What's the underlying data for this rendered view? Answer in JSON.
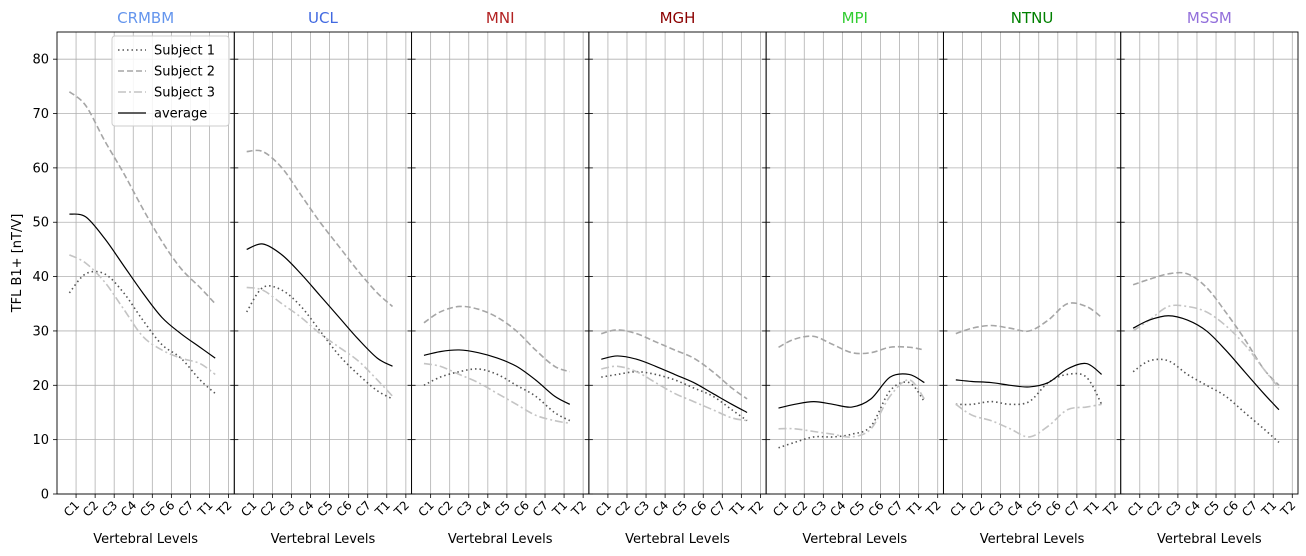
{
  "figure": {
    "ylabel": "TFL B1+ [nT/V]",
    "xlabel": "Vertebral Levels"
  },
  "chart_data": {
    "type": "line",
    "ylim": [
      0,
      85
    ],
    "yticks": [
      0,
      10,
      20,
      30,
      40,
      50,
      60,
      70,
      80
    ],
    "categories": [
      "C1",
      "C2",
      "C3",
      "C4",
      "C5",
      "C6",
      "C7",
      "T1",
      "T2"
    ],
    "xlabel": "Vertebral Levels",
    "ylabel": "TFL B1+ [nT/V]",
    "grid": true,
    "legend": {
      "placement": "top-right of first panel",
      "entries": [
        {
          "name": "Subject 1",
          "style": "dotted",
          "color": "#555555"
        },
        {
          "name": "Subject 2",
          "style": "dashed",
          "color": "#a6a6a6"
        },
        {
          "name": "Subject 3",
          "style": "dashdot",
          "color": "#c4c4c4"
        },
        {
          "name": "average",
          "style": "solid",
          "color": "#000000"
        }
      ]
    },
    "panels": [
      {
        "title": "CRMBM",
        "title_color": "#6495ed",
        "series": [
          {
            "name": "Subject 1",
            "x": [
              0.65,
              1.5,
              2.5,
              3.5,
              4.5,
              5.5,
              6.5,
              7.5,
              8.3
            ],
            "values": [
              37,
              40.5,
              40.5,
              37,
              32,
              27.5,
              25,
              21,
              18.5
            ]
          },
          {
            "name": "Subject 2",
            "x": [
              0.65,
              1.5,
              2.5,
              3.5,
              4.5,
              5.5,
              6.5,
              7.5,
              8.3
            ],
            "values": [
              74,
              71.5,
              65,
              59,
              52.5,
              46.5,
              41.5,
              38,
              35
            ]
          },
          {
            "name": "Subject 3",
            "x": [
              0.65,
              1.5,
              2.5,
              3.5,
              4.5,
              5.5,
              6.5,
              7.5,
              8.3
            ],
            "values": [
              44,
              42.5,
              39,
              34,
              29,
              26.5,
              25,
              24,
              22
            ]
          },
          {
            "name": "average",
            "x": [
              0.65,
              1.5,
              2.5,
              3.5,
              4.5,
              5.5,
              6.5,
              7.5,
              8.3
            ],
            "values": [
              51.5,
              51,
              47,
              42,
              37,
              32.5,
              29.5,
              27,
              25
            ]
          }
        ]
      },
      {
        "title": "UCL",
        "title_color": "#4169e1",
        "series": [
          {
            "name": "Subject 1",
            "x": [
              0.65,
              1.5,
              2.5,
              3.5,
              4.5,
              5.5,
              6.5,
              7.5,
              8.3
            ],
            "values": [
              33.5,
              38,
              37.5,
              34.5,
              30,
              25.5,
              22,
              19,
              17.5
            ]
          },
          {
            "name": "Subject 2",
            "x": [
              0.65,
              1.5,
              2.5,
              3.5,
              4.5,
              5.5,
              6.5,
              7.5,
              8.3
            ],
            "values": [
              63,
              63,
              60,
              55,
              50,
              45.5,
              41,
              37,
              34.5
            ]
          },
          {
            "name": "Subject 3",
            "x": [
              0.65,
              1.5,
              2.5,
              3.5,
              4.5,
              5.5,
              6.5,
              7.5,
              8.3
            ],
            "values": [
              38,
              37.5,
              35,
              32.5,
              29.5,
              27,
              24.5,
              21,
              18
            ]
          },
          {
            "name": "average",
            "x": [
              0.65,
              1.5,
              2.5,
              3.5,
              4.5,
              5.5,
              6.5,
              7.5,
              8.3
            ],
            "values": [
              45,
              46,
              44,
              40.5,
              36.5,
              32.5,
              28.5,
              25,
              23.5
            ]
          }
        ]
      },
      {
        "title": "MNI",
        "title_color": "#b22222",
        "series": [
          {
            "name": "Subject 1",
            "x": [
              0.65,
              1.5,
              2.5,
              3.5,
              4.5,
              5.5,
              6.5,
              7.5,
              8.3
            ],
            "values": [
              20,
              21.5,
              22.5,
              23,
              22,
              20,
              18,
              15,
              13.5
            ]
          },
          {
            "name": "Subject 2",
            "x": [
              0.65,
              1.5,
              2.5,
              3.5,
              4.5,
              5.5,
              6.5,
              7.5,
              8.3
            ],
            "values": [
              31.5,
              33.5,
              34.5,
              34,
              32.5,
              30,
              26.5,
              23.5,
              22.5
            ]
          },
          {
            "name": "Subject 3",
            "x": [
              0.65,
              1.5,
              2.5,
              3.5,
              4.5,
              5.5,
              6.5,
              7.5,
              8.3
            ],
            "values": [
              24,
              23.5,
              22,
              20.5,
              18.5,
              16.5,
              14.5,
              13.5,
              13
            ]
          },
          {
            "name": "average",
            "x": [
              0.65,
              1.5,
              2.5,
              3.5,
              4.5,
              5.5,
              6.5,
              7.5,
              8.3
            ],
            "values": [
              25.5,
              26.2,
              26.5,
              26,
              25,
              23.5,
              21,
              18,
              16.5
            ]
          }
        ]
      },
      {
        "title": "MGH",
        "title_color": "#8b0000",
        "series": [
          {
            "name": "Subject 1",
            "x": [
              0.65,
              1.5,
              2.5,
              3.5,
              4.5,
              5.5,
              6.5,
              7.5,
              8.3
            ],
            "values": [
              21.5,
              22,
              22.5,
              22,
              21,
              19.5,
              18,
              15.5,
              13.5
            ]
          },
          {
            "name": "Subject 2",
            "x": [
              0.65,
              1.5,
              2.5,
              3.5,
              4.5,
              5.5,
              6.5,
              7.5,
              8.3
            ],
            "values": [
              29.5,
              30.2,
              29.5,
              28,
              26.5,
              25,
              22.5,
              19.5,
              17.5
            ]
          },
          {
            "name": "Subject 3",
            "x": [
              0.65,
              1.5,
              2.5,
              3.5,
              4.5,
              5.5,
              6.5,
              7.5,
              8.3
            ],
            "values": [
              23,
              23.5,
              22.5,
              20.5,
              18.5,
              17,
              15.5,
              14,
              13.5
            ]
          },
          {
            "name": "average",
            "x": [
              0.65,
              1.5,
              2.5,
              3.5,
              4.5,
              5.5,
              6.5,
              7.5,
              8.3
            ],
            "values": [
              24.8,
              25.4,
              24.8,
              23.5,
              22,
              20.5,
              18.5,
              16.5,
              15
            ]
          }
        ]
      },
      {
        "title": "MPI",
        "title_color": "#32cd32",
        "series": [
          {
            "name": "Subject 1",
            "x": [
              0.65,
              1.5,
              2.5,
              3.5,
              4.5,
              5.5,
              6.5,
              7.5,
              8.3
            ],
            "values": [
              8.5,
              9.5,
              10.5,
              10.5,
              11,
              12.5,
              19,
              20.5,
              17
            ]
          },
          {
            "name": "Subject 2",
            "x": [
              0.65,
              1.5,
              2.5,
              3.5,
              4.5,
              5.5,
              6.5,
              7.5,
              8.3
            ],
            "values": [
              27,
              28.5,
              29,
              27.5,
              26,
              26,
              27,
              27,
              26.5
            ]
          },
          {
            "name": "Subject 3",
            "x": [
              0.65,
              1.5,
              2.5,
              3.5,
              4.5,
              5.5,
              6.5,
              7.5,
              8.3
            ],
            "values": [
              12,
              12,
              11.5,
              11,
              10.5,
              12,
              18,
              21,
              17.5
            ]
          },
          {
            "name": "average",
            "x": [
              0.65,
              1.5,
              2.5,
              3.5,
              4.5,
              5.5,
              6.5,
              7.5,
              8.3
            ],
            "values": [
              15.8,
              16.5,
              17,
              16.5,
              16,
              17.5,
              21.5,
              22,
              20.5
            ]
          }
        ]
      },
      {
        "title": "NTNU",
        "title_color": "#008000",
        "series": [
          {
            "name": "Subject 1",
            "x": [
              0.65,
              1.5,
              2.5,
              3.5,
              4.5,
              5.5,
              6.5,
              7.5,
              8.3
            ],
            "values": [
              16.5,
              16.5,
              17,
              16.5,
              17,
              20.5,
              22,
              21.5,
              16.5
            ]
          },
          {
            "name": "Subject 2",
            "x": [
              0.65,
              1.5,
              2.5,
              3.5,
              4.5,
              5.5,
              6.5,
              7.5,
              8.3
            ],
            "values": [
              29.5,
              30.5,
              31,
              30.5,
              30,
              32,
              35,
              34.5,
              32.5
            ]
          },
          {
            "name": "Subject 3",
            "x": [
              0.65,
              1.5,
              2.5,
              3.5,
              4.5,
              5.5,
              6.5,
              7.5,
              8.3
            ],
            "values": [
              16.5,
              14.5,
              13.5,
              12,
              10.5,
              12.5,
              15.5,
              16,
              16.5
            ]
          },
          {
            "name": "average",
            "x": [
              0.65,
              1.5,
              2.5,
              3.5,
              4.5,
              5.5,
              6.5,
              7.5,
              8.3
            ],
            "values": [
              21,
              20.7,
              20.5,
              20,
              19.7,
              20.5,
              23,
              24,
              22
            ]
          }
        ]
      },
      {
        "title": "MSSM",
        "title_color": "#9370db",
        "series": [
          {
            "name": "Subject 1",
            "x": [
              0.65,
              1.5,
              2.5,
              3.5,
              4.5,
              5.5,
              6.5,
              7.5,
              8.3
            ],
            "values": [
              22.5,
              24.5,
              24.5,
              22,
              20,
              18,
              15,
              12,
              9.5
            ]
          },
          {
            "name": "Subject 2",
            "x": [
              0.65,
              1.5,
              2.5,
              3.5,
              4.5,
              5.5,
              6.5,
              7.5,
              8.3
            ],
            "values": [
              38.5,
              39.5,
              40.5,
              40.5,
              38,
              33.5,
              28.5,
              23,
              20
            ]
          },
          {
            "name": "Subject 3",
            "x": [
              0.65,
              1.5,
              2.5,
              3.5,
              4.5,
              5.5,
              6.5,
              7.5,
              8.3
            ],
            "values": [
              30,
              32,
              34.5,
              34.5,
              33.5,
              31,
              27.5,
              23,
              19.5
            ]
          },
          {
            "name": "average",
            "x": [
              0.65,
              1.5,
              2.5,
              3.5,
              4.5,
              5.5,
              6.5,
              7.5,
              8.3
            ],
            "values": [
              30.5,
              32,
              32.8,
              32,
              30,
              26.5,
              22.5,
              18.5,
              15.5
            ]
          }
        ]
      }
    ]
  }
}
